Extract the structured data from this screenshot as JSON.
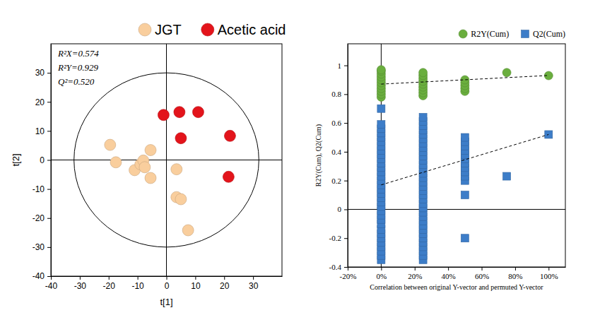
{
  "chart_data": [
    {
      "type": "scatter",
      "xlabel": "t[1]",
      "ylabel": "t[2]",
      "xlim": [
        -40,
        40
      ],
      "ylim": [
        -40,
        40
      ],
      "xticks": [
        -40,
        -30,
        -20,
        -10,
        0,
        10,
        20,
        30
      ],
      "yticks": [
        -40,
        -30,
        -20,
        -10,
        0,
        10,
        20,
        30
      ],
      "legend": "top",
      "annotations": [
        "R²X=0.574",
        "R²Y=0.929",
        "Q²=0.520"
      ],
      "reference_lines": {
        "x": 0,
        "y": 0
      },
      "ellipse": {
        "cx": 0,
        "cy": 0,
        "rx": 32,
        "ry": 30
      },
      "series": [
        {
          "name": "JGT",
          "color": "#F9CE9D",
          "marker": "circle",
          "x": [
            -19.5,
            -17.5,
            -11,
            -9,
            -8,
            -7.5,
            -5.5,
            -5.5,
            3.5,
            3.5,
            5,
            7.5
          ],
          "values": [
            5.2,
            -0.8,
            -3.5,
            -1.5,
            -0.2,
            -2.5,
            3.4,
            -6.2,
            -3.2,
            -12.8,
            -13.5,
            -24.2
          ]
        },
        {
          "name": "Acetic acid",
          "color": "#E3141B",
          "marker": "circle",
          "x": [
            -1,
            4.5,
            5,
            11,
            22,
            21.5
          ],
          "values": [
            15.5,
            16.5,
            7.5,
            16.5,
            8.3,
            -5.8
          ]
        }
      ]
    },
    {
      "type": "scatter",
      "xlabel": "Correlation between original Y-vector and permuted Y-vector",
      "ylabel": "R2Y(Cum), Q2(Cum)",
      "xlim": [
        -20,
        110
      ],
      "ylim": [
        -0.4,
        1.15
      ],
      "xticks": [
        {
          "value": -20,
          "label": "-20%"
        },
        {
          "value": 0,
          "label": "0%"
        },
        {
          "value": 20,
          "label": "20%"
        },
        {
          "value": 40,
          "label": "40%"
        },
        {
          "value": 60,
          "label": "60%"
        },
        {
          "value": 80,
          "label": "80%"
        },
        {
          "value": 100,
          "label": "100%"
        }
      ],
      "yticks": [
        -0.4,
        -0.2,
        0,
        0.2,
        0.4,
        0.6,
        0.8,
        1
      ],
      "legend": "top-right",
      "reference_lines": {
        "x": 0,
        "y": 0
      },
      "series": [
        {
          "name": "R2Y(Cum)",
          "color": "#6AAE3E",
          "marker": "circle",
          "x": [
            0,
            0,
            0,
            0,
            0,
            0,
            0,
            0,
            0,
            0,
            0,
            25,
            25,
            25,
            25,
            25,
            25,
            25,
            25,
            25,
            50,
            50,
            50,
            50,
            50,
            75,
            100
          ],
          "values": [
            0.78,
            0.8,
            0.82,
            0.84,
            0.86,
            0.88,
            0.9,
            0.92,
            0.94,
            0.96,
            0.97,
            0.79,
            0.81,
            0.83,
            0.85,
            0.87,
            0.89,
            0.91,
            0.93,
            0.95,
            0.82,
            0.84,
            0.86,
            0.88,
            0.9,
            0.95,
            0.929
          ],
          "trend": {
            "x": [
              0,
              100
            ],
            "values": [
              0.87,
              0.93
            ],
            "line_style": "dashed"
          }
        },
        {
          "name": "Q2(Cum)",
          "color": "#3D7DC8",
          "marker": "square",
          "x": [
            0,
            0,
            0,
            0,
            0,
            0,
            0,
            0,
            0,
            0,
            0,
            0,
            0,
            0,
            0,
            0,
            0,
            0,
            0,
            0,
            0,
            0,
            0,
            0,
            0,
            0,
            0,
            0,
            0,
            0,
            0,
            0,
            0,
            25,
            25,
            25,
            25,
            25,
            25,
            25,
            25,
            25,
            25,
            25,
            25,
            25,
            25,
            25,
            25,
            25,
            25,
            25,
            25,
            25,
            25,
            25,
            25,
            25,
            25,
            25,
            25,
            25,
            25,
            25,
            25,
            25,
            25,
            50,
            50,
            50,
            50,
            50,
            50,
            50,
            50,
            50,
            50,
            50,
            50,
            50,
            75,
            100
          ],
          "values": [
            -0.35,
            -0.32,
            -0.29,
            -0.26,
            -0.23,
            -0.2,
            -0.17,
            -0.14,
            -0.1,
            -0.07,
            -0.04,
            -0.01,
            0.02,
            0.05,
            0.08,
            0.11,
            0.14,
            0.17,
            0.2,
            0.23,
            0.26,
            0.29,
            0.32,
            0.35,
            0.38,
            0.41,
            0.44,
            0.47,
            0.5,
            0.53,
            0.56,
            0.59,
            0.7,
            -0.35,
            -0.32,
            -0.29,
            -0.26,
            -0.23,
            -0.2,
            -0.17,
            -0.14,
            -0.11,
            -0.08,
            -0.05,
            -0.02,
            0.01,
            0.04,
            0.07,
            0.1,
            0.13,
            0.16,
            0.19,
            0.22,
            0.25,
            0.28,
            0.31,
            0.34,
            0.37,
            0.4,
            0.43,
            0.46,
            0.49,
            0.52,
            0.55,
            0.58,
            0.61,
            0.64,
            0.2,
            0.23,
            0.26,
            0.29,
            0.32,
            0.35,
            0.38,
            0.41,
            0.44,
            0.47,
            0.5,
            0.1,
            -0.2,
            0.23,
            0.52
          ],
          "trend": {
            "x": [
              0,
              100
            ],
            "values": [
              0.17,
              0.52
            ],
            "line_style": "dashed"
          }
        }
      ]
    }
  ]
}
